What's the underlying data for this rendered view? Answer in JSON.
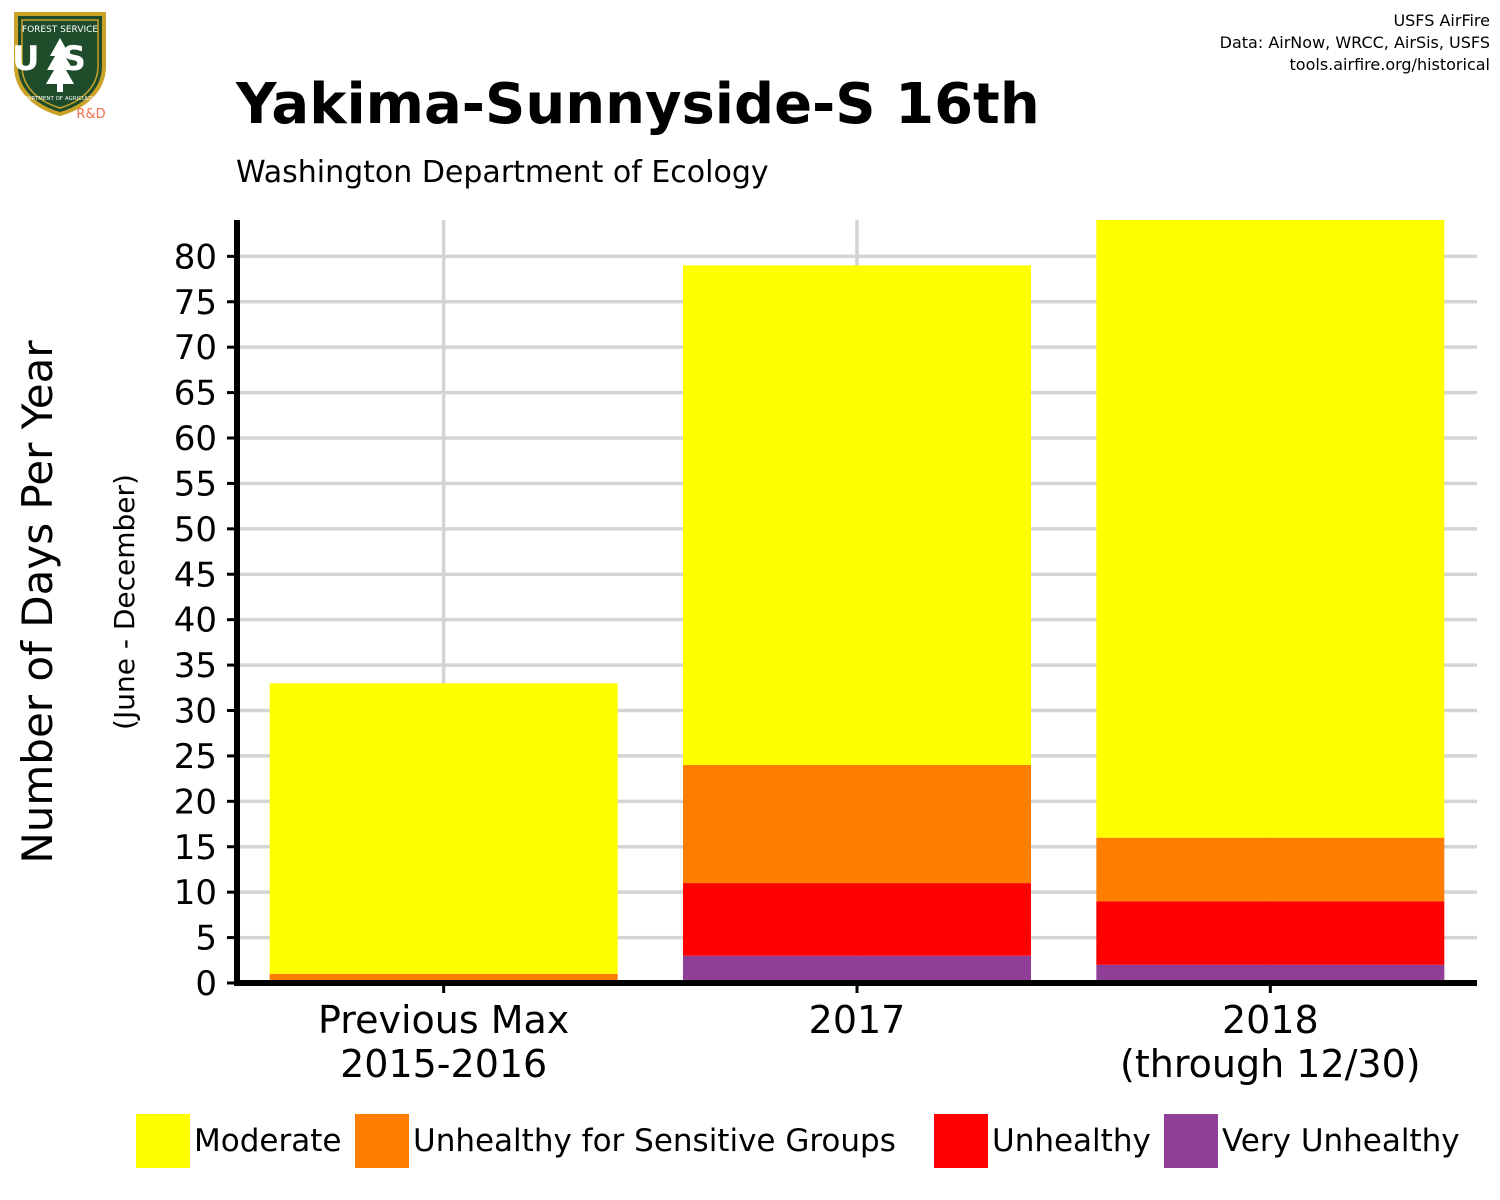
{
  "header": {
    "title": "Yakima-Sunnyside-S 16th",
    "subtitle": "Washington Department of Ecology",
    "credits": [
      "USFS AirFire",
      "Data: AirNow, WRCC, AirSis, USFS",
      "tools.airfire.org/historical"
    ]
  },
  "logo": {
    "icon": "usfs-shield-logo",
    "text_top": "FOREST SERVICE",
    "text_main": "US",
    "text_bottom": "DEPARTMENT OF AGRICULTURE",
    "badge": "R&D"
  },
  "colors": {
    "moderate": "#ffff00",
    "usg": "#ff7e00",
    "unhealthy": "#ff0000",
    "very_unhealthy": "#8f3f97",
    "grid": "#d4d4d4"
  },
  "chart_data": {
    "type": "bar",
    "stacked": true,
    "title": "Yakima-Sunnyside-S 16th",
    "subtitle": "Washington Department of Ecology",
    "xlabel": "",
    "ylabel": "Number of Days Per Year",
    "ylabel_sub": "(June - December)",
    "ylim": [
      0,
      84
    ],
    "yticks": [
      0,
      5,
      10,
      15,
      20,
      25,
      30,
      35,
      40,
      45,
      50,
      55,
      60,
      65,
      70,
      75,
      80
    ],
    "categories": [
      [
        "Previous Max",
        "2015-2016"
      ],
      [
        "2017"
      ],
      [
        "2018",
        "(through 12/30)"
      ]
    ],
    "series": [
      {
        "name": "Very Unhealthy",
        "color": "#8f3f97",
        "values": [
          0,
          3,
          2
        ]
      },
      {
        "name": "Unhealthy",
        "color": "#ff0000",
        "values": [
          0,
          8,
          7
        ]
      },
      {
        "name": "Unhealthy for Sensitive Groups",
        "color": "#ff7e00",
        "values": [
          1,
          13,
          7
        ]
      },
      {
        "name": "Moderate",
        "color": "#ffff00",
        "values": [
          32,
          55,
          68
        ]
      }
    ],
    "grid": true,
    "legend": "bottom",
    "legend_order": [
      "Moderate",
      "Unhealthy for Sensitive Groups",
      "Unhealthy",
      "Very Unhealthy"
    ]
  }
}
